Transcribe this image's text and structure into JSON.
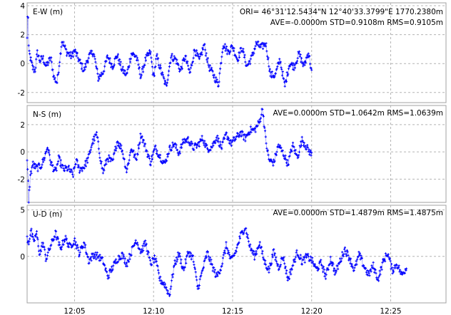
{
  "chart_data": [
    {
      "type": "scatter",
      "panel": "E-W",
      "ylabel": "E-W (m)",
      "header_line1": "ORI= 46°31'12.5434\"N   12°40'33.3799\"E 1770.2380m",
      "header_line2": "AVE=-0.0000m STD=0.9108m RMS=0.9105m",
      "ylim": [
        -2.7,
        4.2
      ],
      "yticks": [
        "4",
        "2",
        "0",
        "-2"
      ],
      "ytick_values": [
        4,
        2,
        0,
        -2
      ],
      "series_color": "#0000ff",
      "anchors": [
        [
          12.0,
          1.7
        ],
        [
          12.02,
          3.2
        ],
        [
          12.06,
          3.6
        ],
        [
          12.1,
          1.0
        ],
        [
          12.2,
          0.4
        ],
        [
          12.35,
          -0.3
        ],
        [
          12.5,
          -0.5
        ],
        [
          12.65,
          0.8
        ],
        [
          12.8,
          0.2
        ],
        [
          13.0,
          0.4
        ],
        [
          13.2,
          -0.2
        ],
        [
          13.5,
          0.4
        ],
        [
          13.7,
          -1.0
        ],
        [
          13.9,
          -1.3
        ],
        [
          14.2,
          1.6
        ],
        [
          14.5,
          0.8
        ],
        [
          14.8,
          0.5
        ],
        [
          15.0,
          0.9
        ],
        [
          15.3,
          0.2
        ],
        [
          15.6,
          -0.5
        ],
        [
          15.9,
          0.5
        ],
        [
          16.2,
          0.8
        ],
        [
          16.5,
          -1.0
        ],
        [
          16.8,
          -0.6
        ],
        [
          17.1,
          0.5
        ],
        [
          17.4,
          -0.2
        ],
        [
          17.7,
          0.6
        ],
        [
          18.0,
          -0.4
        ],
        [
          18.3,
          -0.8
        ],
        [
          18.6,
          0.7
        ],
        [
          18.9,
          0.5
        ],
        [
          19.2,
          -0.9
        ],
        [
          19.5,
          0.3
        ],
        [
          19.8,
          0.8
        ],
        [
          20.0,
          -1.0
        ],
        [
          20.2,
          0.5
        ],
        [
          20.5,
          -0.6
        ],
        [
          20.8,
          -1.6
        ],
        [
          21.1,
          0.5
        ],
        [
          21.4,
          0.3
        ],
        [
          21.7,
          -0.5
        ],
        [
          22.0,
          0.5
        ],
        [
          22.3,
          -0.7
        ],
        [
          22.6,
          1.0
        ],
        [
          22.9,
          0.2
        ],
        [
          23.2,
          1.3
        ],
        [
          23.5,
          -0.2
        ],
        [
          23.8,
          -0.8
        ],
        [
          24.1,
          -1.5
        ],
        [
          24.4,
          1.4
        ],
        [
          24.7,
          0.8
        ],
        [
          25.0,
          1.2
        ],
        [
          25.3,
          0.3
        ],
        [
          25.6,
          1.1
        ],
        [
          25.9,
          -0.2
        ],
        [
          26.2,
          0.4
        ],
        [
          26.5,
          1.4
        ],
        [
          26.8,
          1.1
        ],
        [
          27.1,
          1.4
        ],
        [
          27.4,
          -0.8
        ],
        [
          27.7,
          -0.8
        ],
        [
          28.0,
          0.3
        ],
        [
          28.3,
          -1.6
        ],
        [
          28.6,
          0.0
        ],
        [
          28.9,
          -0.2
        ],
        [
          29.2,
          0.7
        ],
        [
          29.5,
          -0.2
        ],
        [
          29.8,
          0.8
        ],
        [
          30.0,
          -0.6
        ]
      ]
    },
    {
      "type": "scatter",
      "panel": "N-S",
      "ylabel": "N-S (m)",
      "header_line1": "",
      "header_line2": "AVE=0.0000m STD=1.0642m RMS=1.0639m",
      "ylim": [
        -3.7,
        3.4
      ],
      "yticks": [
        "2",
        "0",
        "-2"
      ],
      "ytick_values": [
        2,
        0,
        -2
      ],
      "series_color": "#0000ff",
      "anchors": [
        [
          12.0,
          -0.8
        ],
        [
          12.05,
          -1.6
        ],
        [
          12.1,
          -3.6
        ],
        [
          12.2,
          -1.8
        ],
        [
          12.35,
          -0.9
        ],
        [
          12.6,
          -1.2
        ],
        [
          12.9,
          -1.0
        ],
        [
          13.1,
          -0.4
        ],
        [
          13.3,
          0.4
        ],
        [
          13.5,
          -0.8
        ],
        [
          13.8,
          -1.5
        ],
        [
          14.0,
          -0.5
        ],
        [
          14.3,
          -1.3
        ],
        [
          14.6,
          -1.2
        ],
        [
          14.9,
          -1.7
        ],
        [
          15.1,
          -0.6
        ],
        [
          15.3,
          -1.3
        ],
        [
          15.6,
          -1.1
        ],
        [
          15.9,
          -0.4
        ],
        [
          16.1,
          0.6
        ],
        [
          16.4,
          1.3
        ],
        [
          16.6,
          -0.2
        ],
        [
          16.8,
          -1.5
        ],
        [
          17.1,
          -0.4
        ],
        [
          17.4,
          -0.8
        ],
        [
          17.7,
          0.8
        ],
        [
          18.0,
          0.2
        ],
        [
          18.3,
          -1.4
        ],
        [
          18.6,
          0.3
        ],
        [
          18.9,
          -0.6
        ],
        [
          19.2,
          1.3
        ],
        [
          19.5,
          0.3
        ],
        [
          19.8,
          -0.8
        ],
        [
          20.1,
          0.3
        ],
        [
          20.4,
          -0.3
        ],
        [
          20.7,
          -0.9
        ],
        [
          21.0,
          0.2
        ],
        [
          21.3,
          0.6
        ],
        [
          21.6,
          -0.1
        ],
        [
          21.9,
          0.8
        ],
        [
          22.2,
          0.9
        ],
        [
          22.5,
          0.3
        ],
        [
          22.8,
          0.5
        ],
        [
          23.1,
          1.0
        ],
        [
          23.4,
          0.2
        ],
        [
          23.7,
          0.4
        ],
        [
          24.0,
          1.1
        ],
        [
          24.3,
          0.3
        ],
        [
          24.6,
          1.3
        ],
        [
          24.9,
          0.6
        ],
        [
          25.2,
          1.0
        ],
        [
          25.5,
          1.4
        ],
        [
          25.8,
          1.0
        ],
        [
          26.1,
          1.6
        ],
        [
          26.4,
          1.6
        ],
        [
          26.7,
          2.2
        ],
        [
          26.9,
          3.2
        ],
        [
          27.1,
          0.8
        ],
        [
          27.3,
          -0.6
        ],
        [
          27.6,
          -0.8
        ],
        [
          27.9,
          0.5
        ],
        [
          28.2,
          -0.1
        ],
        [
          28.5,
          -0.9
        ],
        [
          28.8,
          0.5
        ],
        [
          29.1,
          -0.4
        ],
        [
          29.4,
          0.9
        ],
        [
          29.7,
          0.3
        ],
        [
          30.0,
          -0.2
        ]
      ]
    },
    {
      "type": "scatter",
      "panel": "U-D",
      "ylabel": "U-D (m)",
      "header_line1": "",
      "header_line2": "AVE=0.0000m STD=1.4879m RMS=1.4875m",
      "ylim": [
        -5.0,
        5.5
      ],
      "yticks": [
        "5",
        "0"
      ],
      "ytick_values": [
        5,
        0
      ],
      "xticks": [
        "12:05",
        "12:10",
        "12:15",
        "12:20",
        "12:25"
      ],
      "xtick_values": [
        15,
        20,
        25,
        30,
        35
      ],
      "series_color": "#0000ff",
      "anchors": [
        [
          12.0,
          2.0
        ],
        [
          12.1,
          1.5
        ],
        [
          12.25,
          2.8
        ],
        [
          12.4,
          1.5
        ],
        [
          12.6,
          2.5
        ],
        [
          12.8,
          0.2
        ],
        [
          13.0,
          1.5
        ],
        [
          13.2,
          -0.3
        ],
        [
          13.5,
          1.2
        ],
        [
          13.8,
          2.5
        ],
        [
          14.1,
          0.8
        ],
        [
          14.4,
          2.0
        ],
        [
          14.7,
          1.0
        ],
        [
          15.0,
          1.8
        ],
        [
          15.3,
          0.3
        ],
        [
          15.6,
          1.5
        ],
        [
          15.9,
          -0.5
        ],
        [
          16.2,
          0.2
        ],
        [
          16.5,
          0.0
        ],
        [
          16.8,
          -0.5
        ],
        [
          17.1,
          -2.2
        ],
        [
          17.4,
          -1.2
        ],
        [
          17.7,
          -0.3
        ],
        [
          18.0,
          0.2
        ],
        [
          18.3,
          -0.8
        ],
        [
          18.6,
          0.5
        ],
        [
          18.9,
          1.8
        ],
        [
          19.2,
          0.5
        ],
        [
          19.5,
          1.5
        ],
        [
          19.8,
          -0.8
        ],
        [
          20.1,
          -0.2
        ],
        [
          20.4,
          -2.5
        ],
        [
          20.7,
          -3.0
        ],
        [
          21.0,
          -4.2
        ],
        [
          21.3,
          -1.0
        ],
        [
          21.6,
          0.3
        ],
        [
          21.9,
          -1.5
        ],
        [
          22.2,
          0.5
        ],
        [
          22.5,
          -0.2
        ],
        [
          22.8,
          -3.5
        ],
        [
          23.1,
          -1.5
        ],
        [
          23.4,
          0.4
        ],
        [
          23.7,
          -1.0
        ],
        [
          24.0,
          -2.2
        ],
        [
          24.3,
          -1.0
        ],
        [
          24.6,
          1.2
        ],
        [
          24.9,
          -0.5
        ],
        [
          25.2,
          0.5
        ],
        [
          25.5,
          2.2
        ],
        [
          25.8,
          3.2
        ],
        [
          26.1,
          1.0
        ],
        [
          26.4,
          0.0
        ],
        [
          26.7,
          1.5
        ],
        [
          27.0,
          -0.5
        ],
        [
          27.3,
          -1.5
        ],
        [
          27.6,
          0.5
        ],
        [
          27.9,
          -1.2
        ],
        [
          28.2,
          0.0
        ],
        [
          28.5,
          -2.5
        ],
        [
          28.8,
          -1.0
        ],
        [
          29.1,
          0.5
        ],
        [
          29.4,
          -0.6
        ],
        [
          29.7,
          0.0
        ],
        [
          30.0,
          -0.4
        ],
        [
          30.3,
          -1.4
        ],
        [
          30.6,
          -0.7
        ],
        [
          30.9,
          -2.2
        ],
        [
          31.2,
          -0.2
        ],
        [
          31.5,
          -1.8
        ],
        [
          31.8,
          -0.5
        ],
        [
          32.1,
          0.8
        ],
        [
          32.4,
          -0.2
        ],
        [
          32.7,
          -1.5
        ],
        [
          33.0,
          0.2
        ],
        [
          33.3,
          -1.0
        ],
        [
          33.6,
          -2.0
        ],
        [
          33.9,
          -1.0
        ],
        [
          34.2,
          -2.5
        ],
        [
          34.5,
          -0.7
        ],
        [
          34.8,
          0.4
        ],
        [
          35.1,
          -1.5
        ],
        [
          35.4,
          -0.8
        ],
        [
          35.7,
          -2.0
        ],
        [
          36.0,
          -1.2
        ]
      ]
    }
  ],
  "x_axis": {
    "xlim": [
      12.0,
      38.5
    ],
    "grid": true
  }
}
